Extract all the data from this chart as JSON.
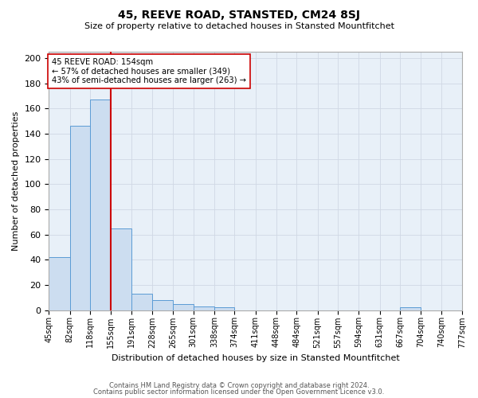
{
  "title": "45, REEVE ROAD, STANSTED, CM24 8SJ",
  "subtitle": "Size of property relative to detached houses in Stansted Mountfitchet",
  "xlabel": "Distribution of detached houses by size in Stansted Mountfitchet",
  "ylabel": "Number of detached properties",
  "bin_edges": [
    45,
    82,
    118,
    155,
    191,
    228,
    265,
    301,
    338,
    374,
    411,
    448,
    484,
    521,
    557,
    594,
    631,
    667,
    704,
    740,
    777
  ],
  "bar_heights": [
    42,
    146,
    167,
    65,
    13,
    8,
    5,
    3,
    2,
    0,
    0,
    0,
    0,
    0,
    0,
    0,
    0,
    2,
    0,
    0
  ],
  "bar_color": "#ccddf0",
  "bar_edge_color": "#5b9bd5",
  "grid_color": "#d0d8e4",
  "background_color": "#e8f0f8",
  "property_value": 154,
  "vline_color": "#cc0000",
  "annotation_box_edge_color": "#cc0000",
  "annotation_title": "45 REEVE ROAD: 154sqm",
  "annotation_line1": "← 57% of detached houses are smaller (349)",
  "annotation_line2": "43% of semi-detached houses are larger (263) →",
  "ylim": [
    0,
    205
  ],
  "yticks": [
    0,
    20,
    40,
    60,
    80,
    100,
    120,
    140,
    160,
    180,
    200
  ],
  "tick_labels": [
    "45sqm",
    "82sqm",
    "118sqm",
    "155sqm",
    "191sqm",
    "228sqm",
    "265sqm",
    "301sqm",
    "338sqm",
    "374sqm",
    "411sqm",
    "448sqm",
    "484sqm",
    "521sqm",
    "557sqm",
    "594sqm",
    "631sqm",
    "667sqm",
    "704sqm",
    "740sqm",
    "777sqm"
  ],
  "footer1": "Contains HM Land Registry data © Crown copyright and database right 2024.",
  "footer2": "Contains public sector information licensed under the Open Government Licence v3.0."
}
